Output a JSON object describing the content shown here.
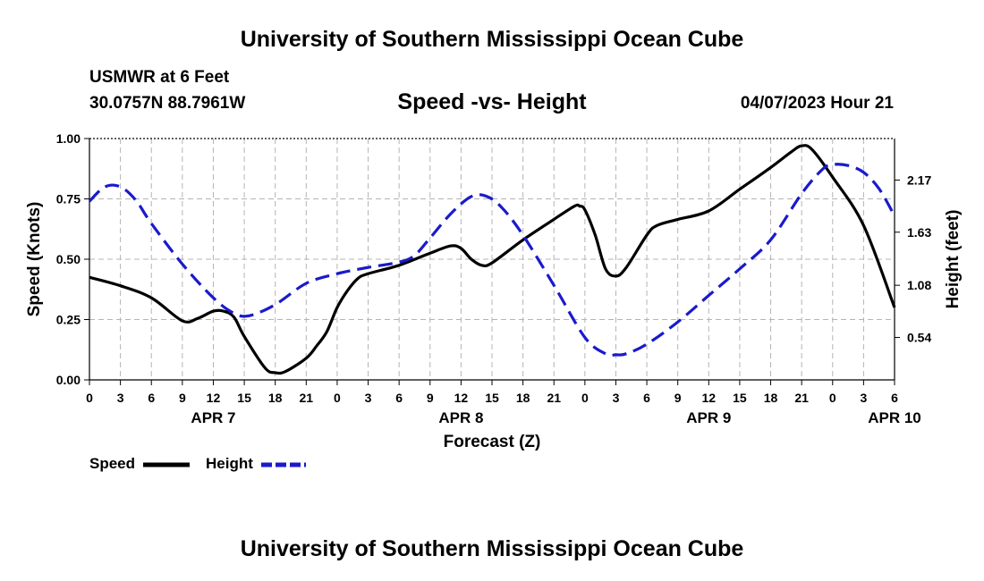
{
  "header": {
    "title_top": "University of Southern Mississippi Ocean Cube",
    "station": "USMWR at 6 Feet",
    "coords": "30.0757N  88.7961W",
    "datetime": "04/07/2023 Hour 21",
    "title_bottom": "University of Southern Mississippi Ocean Cube"
  },
  "chart_data": {
    "type": "line",
    "title": "Speed -vs- Height",
    "xlabel": "Forecast (Z)",
    "ylabel": "Speed (Knots)",
    "y2label": "Height (feet)",
    "ylim": [
      0,
      1.0
    ],
    "y2lim": [
      0.1,
      2.6
    ],
    "xlim": [
      0,
      78
    ],
    "x_unit": "hours from Apr 7 00Z",
    "grid": true,
    "legend": "bottom-left",
    "x_ticks": [
      {
        "x": 0,
        "label": "0"
      },
      {
        "x": 3,
        "label": "3"
      },
      {
        "x": 6,
        "label": "6"
      },
      {
        "x": 9,
        "label": "9"
      },
      {
        "x": 12,
        "label": "12"
      },
      {
        "x": 15,
        "label": "15"
      },
      {
        "x": 18,
        "label": "18"
      },
      {
        "x": 21,
        "label": "21"
      },
      {
        "x": 24,
        "label": "0"
      },
      {
        "x": 27,
        "label": "3"
      },
      {
        "x": 30,
        "label": "6"
      },
      {
        "x": 33,
        "label": "9"
      },
      {
        "x": 36,
        "label": "12"
      },
      {
        "x": 39,
        "label": "15"
      },
      {
        "x": 42,
        "label": "18"
      },
      {
        "x": 45,
        "label": "21"
      },
      {
        "x": 48,
        "label": "0"
      },
      {
        "x": 51,
        "label": "3"
      },
      {
        "x": 54,
        "label": "6"
      },
      {
        "x": 57,
        "label": "9"
      },
      {
        "x": 60,
        "label": "12"
      },
      {
        "x": 63,
        "label": "15"
      },
      {
        "x": 66,
        "label": "18"
      },
      {
        "x": 69,
        "label": "21"
      },
      {
        "x": 72,
        "label": "0"
      },
      {
        "x": 75,
        "label": "3"
      },
      {
        "x": 78,
        "label": "6"
      }
    ],
    "day_labels": [
      {
        "x": 12,
        "label": "APR 7"
      },
      {
        "x": 36,
        "label": "APR 8"
      },
      {
        "x": 60,
        "label": "APR 9"
      },
      {
        "x": 78,
        "label": "APR 10"
      }
    ],
    "y_ticks": [
      {
        "v": 0.0,
        "label": "0.00"
      },
      {
        "v": 0.25,
        "label": "0.25"
      },
      {
        "v": 0.5,
        "label": "0.50"
      },
      {
        "v": 0.75,
        "label": "0.75"
      },
      {
        "v": 1.0,
        "label": "1.00"
      }
    ],
    "y2_ticks": [
      {
        "v": 0.54,
        "label": "0.54"
      },
      {
        "v": 1.08,
        "label": "1.08"
      },
      {
        "v": 1.63,
        "label": "1.63"
      },
      {
        "v": 2.17,
        "label": "2.17"
      }
    ],
    "series": [
      {
        "name": "Speed",
        "axis": "left",
        "color": "#000000",
        "dash": "solid",
        "points": [
          [
            0,
            0.425
          ],
          [
            3,
            0.39
          ],
          [
            6,
            0.34
          ],
          [
            9,
            0.245
          ],
          [
            10.5,
            0.255
          ],
          [
            12,
            0.285
          ],
          [
            13,
            0.285
          ],
          [
            14,
            0.26
          ],
          [
            15,
            0.18
          ],
          [
            17,
            0.05
          ],
          [
            18,
            0.03
          ],
          [
            19,
            0.035
          ],
          [
            21,
            0.09
          ],
          [
            22,
            0.14
          ],
          [
            23,
            0.2
          ],
          [
            24,
            0.3
          ],
          [
            25,
            0.37
          ],
          [
            26,
            0.42
          ],
          [
            27,
            0.44
          ],
          [
            30,
            0.475
          ],
          [
            33,
            0.525
          ],
          [
            35,
            0.555
          ],
          [
            36,
            0.545
          ],
          [
            37,
            0.5
          ],
          [
            38,
            0.475
          ],
          [
            39,
            0.485
          ],
          [
            42,
            0.58
          ],
          [
            45,
            0.665
          ],
          [
            47,
            0.72
          ],
          [
            47.5,
            0.72
          ],
          [
            48,
            0.705
          ],
          [
            49,
            0.6
          ],
          [
            50,
            0.46
          ],
          [
            51,
            0.43
          ],
          [
            52,
            0.465
          ],
          [
            54,
            0.6
          ],
          [
            55,
            0.64
          ],
          [
            57,
            0.665
          ],
          [
            60,
            0.7
          ],
          [
            63,
            0.79
          ],
          [
            66,
            0.88
          ],
          [
            68,
            0.945
          ],
          [
            69,
            0.97
          ],
          [
            70,
            0.955
          ],
          [
            72,
            0.84
          ],
          [
            75,
            0.64
          ],
          [
            78,
            0.3
          ]
        ]
      },
      {
        "name": "Height",
        "axis": "right",
        "color": "#1a1acc",
        "dash": "dashed",
        "points": [
          [
            0,
            1.95
          ],
          [
            1.5,
            2.1
          ],
          [
            3,
            2.1
          ],
          [
            4.5,
            1.96
          ],
          [
            6,
            1.72
          ],
          [
            9,
            1.3
          ],
          [
            12,
            0.95
          ],
          [
            14,
            0.79
          ],
          [
            15.5,
            0.765
          ],
          [
            18,
            0.88
          ],
          [
            21,
            1.1
          ],
          [
            24,
            1.2
          ],
          [
            27,
            1.265
          ],
          [
            30,
            1.32
          ],
          [
            31.5,
            1.39
          ],
          [
            33,
            1.57
          ],
          [
            35,
            1.82
          ],
          [
            37,
            2.0
          ],
          [
            38.5,
            2.0
          ],
          [
            40,
            1.88
          ],
          [
            42,
            1.6
          ],
          [
            45,
            1.08
          ],
          [
            48,
            0.54
          ],
          [
            50,
            0.37
          ],
          [
            51,
            0.36
          ],
          [
            52,
            0.37
          ],
          [
            54,
            0.47
          ],
          [
            57,
            0.7
          ],
          [
            60,
            0.975
          ],
          [
            63,
            1.25
          ],
          [
            66,
            1.55
          ],
          [
            69,
            2.03
          ],
          [
            71,
            2.28
          ],
          [
            72,
            2.33
          ],
          [
            73.5,
            2.32
          ],
          [
            75,
            2.25
          ],
          [
            76.5,
            2.08
          ],
          [
            78,
            1.8
          ]
        ]
      }
    ]
  }
}
